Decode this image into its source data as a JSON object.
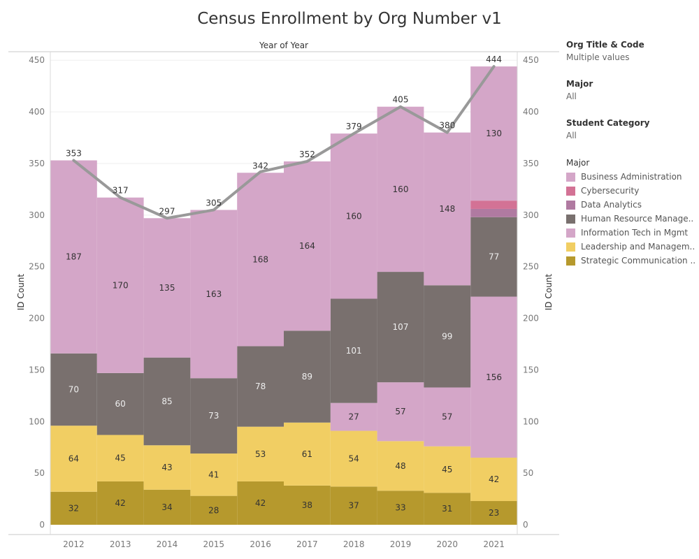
{
  "title": "Census Enrollment by Org Number v1",
  "filters": [
    {
      "label": "Org Title & Code",
      "value": "Multiple values"
    },
    {
      "label": "Major",
      "value": "All"
    },
    {
      "label": "Student Category",
      "value": "All"
    }
  ],
  "legend": {
    "title": "Major",
    "items": [
      {
        "label": "Business Administration",
        "color": "#d4a6c8"
      },
      {
        "label": "Cybersecurity",
        "color": "#d37295"
      },
      {
        "label": "Data Analytics",
        "color": "#b07aa1"
      },
      {
        "label": "Human Resource Manage..",
        "color": "#79706e"
      },
      {
        "label": "Information Tech in Mgmt",
        "color": "#d4a6c8"
      },
      {
        "label": "Leadership and Managem..",
        "color": "#f1ce63"
      },
      {
        "label": "Strategic Communication ..",
        "color": "#b6992d"
      }
    ]
  },
  "chart_data": {
    "type": "bar",
    "stacked": true,
    "x_header": "Year of Year",
    "ylabel": "ID Count",
    "ylabel_right": "ID Count",
    "ylim": [
      0,
      460
    ],
    "y_ticks": [
      0,
      50,
      100,
      150,
      200,
      250,
      300,
      350,
      400,
      450
    ],
    "categories": [
      "2012",
      "2013",
      "2014",
      "2015",
      "2016",
      "2017",
      "2018",
      "2019",
      "2020",
      "2021"
    ],
    "series": [
      {
        "name": "Strategic Communication ..",
        "color": "#b6992d",
        "label_color": "#333333",
        "values": [
          32,
          42,
          34,
          28,
          42,
          38,
          37,
          33,
          31,
          23
        ],
        "labels": [
          "32",
          "42",
          "34",
          "28",
          "42",
          "38",
          "37",
          "33",
          "31",
          "23"
        ]
      },
      {
        "name": "Leadership and Managem..",
        "color": "#f1ce63",
        "label_color": "#333333",
        "values": [
          64,
          45,
          43,
          41,
          53,
          61,
          54,
          48,
          45,
          42
        ],
        "labels": [
          "64",
          "45",
          "43",
          "41",
          "53",
          "61",
          "54",
          "48",
          "45",
          "42"
        ]
      },
      {
        "name": "Information Tech in Mgmt",
        "color": "#d4a6c8",
        "label_color": "#333333",
        "values": [
          0,
          0,
          0,
          0,
          0,
          0,
          27,
          57,
          57,
          156
        ],
        "labels": [
          "",
          "",
          "",
          "",
          "",
          "",
          "27",
          "57",
          "57",
          "156"
        ]
      },
      {
        "name": "Human Resource Manage..",
        "color": "#79706e",
        "label_color": "#eeeeee",
        "values": [
          70,
          60,
          85,
          73,
          78,
          89,
          101,
          107,
          99,
          77
        ],
        "labels": [
          "70",
          "60",
          "85",
          "73",
          "78",
          "89",
          "101",
          "107",
          "99",
          "77"
        ]
      },
      {
        "name": "Data Analytics",
        "color": "#b07aa1",
        "label_color": "#333333",
        "values": [
          0,
          0,
          0,
          0,
          0,
          0,
          0,
          0,
          0,
          8
        ],
        "labels": [
          "",
          "",
          "",
          "",
          "",
          "",
          "",
          "",
          "",
          ""
        ]
      },
      {
        "name": "Cybersecurity",
        "color": "#d37295",
        "label_color": "#333333",
        "values": [
          0,
          0,
          0,
          0,
          0,
          0,
          0,
          0,
          0,
          8
        ],
        "labels": [
          "",
          "",
          "",
          "",
          "",
          "",
          "",
          "",
          "",
          ""
        ]
      },
      {
        "name": "Business Administration",
        "color": "#d4a6c8",
        "label_color": "#333333",
        "values": [
          187,
          170,
          135,
          163,
          168,
          164,
          160,
          160,
          148,
          130
        ],
        "labels": [
          "187",
          "170",
          "135",
          "163",
          "168",
          "164",
          "160",
          "160",
          "148",
          "130"
        ]
      }
    ],
    "totals_line": {
      "color": "#999999",
      "values": [
        353,
        317,
        297,
        305,
        342,
        352,
        379,
        405,
        380,
        444
      ],
      "labels": [
        "353",
        "317",
        "297",
        "305",
        "342",
        "352",
        "379",
        "405",
        "380",
        "444"
      ]
    },
    "grid": true
  }
}
